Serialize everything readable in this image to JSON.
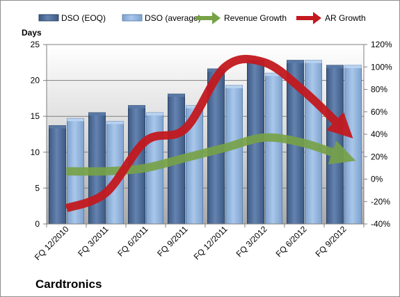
{
  "chart_data": {
    "type": "bar",
    "title": "",
    "company": "Cardtronics",
    "categories": [
      "FQ 12/2010",
      "FQ 3/2011",
      "FQ 6/2011",
      "FQ 9/2011",
      "FQ 12/2011",
      "FQ 3/2012",
      "FQ 6/2012",
      "FQ 9/2012"
    ],
    "y_left": {
      "label": "Days",
      "min": 0,
      "max": 25,
      "ticks": [
        0,
        5,
        10,
        15,
        20,
        25
      ]
    },
    "y_right": {
      "label": "",
      "min": -40,
      "max": 120,
      "ticks": [
        -40,
        -20,
        0,
        20,
        40,
        60,
        80,
        100,
        120
      ],
      "unit": "%"
    },
    "grid": true,
    "legend_position": "top",
    "series": [
      {
        "name": "DSO (EOQ)",
        "kind": "bar",
        "axis": "left",
        "color": "#4f6c96",
        "values": [
          13.7,
          15.5,
          16.5,
          18.1,
          21.6,
          22.8,
          22.8,
          22.1
        ]
      },
      {
        "name": "DSO (average)",
        "kind": "bar",
        "axis": "left",
        "color": "#8fb2dc",
        "values": [
          14.7,
          14.3,
          15.5,
          16.5,
          19.3,
          21.0,
          22.8,
          22.1
        ]
      },
      {
        "name": "Revenue Growth",
        "kind": "arrow",
        "axis": "right",
        "color": "#77a246",
        "values": [
          7,
          7,
          10,
          19,
          28,
          37,
          32,
          20
        ]
      },
      {
        "name": "AR Growth",
        "kind": "arrow",
        "axis": "right",
        "color": "#c3191f",
        "values": [
          -26,
          -12,
          34,
          45,
          100,
          104,
          78,
          44
        ]
      }
    ]
  }
}
